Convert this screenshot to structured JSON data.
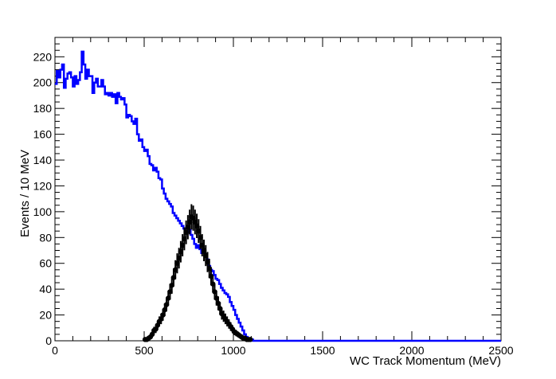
{
  "chart_data": {
    "type": "histogram",
    "xlabel": "WC Track Momentum (MeV)",
    "ylabel": "Events / 10 MeV",
    "xlim": [
      0,
      2500
    ],
    "ylim": [
      0,
      235
    ],
    "x_ticks": [
      0,
      500,
      1000,
      1500,
      2000,
      2500
    ],
    "y_ticks": [
      0,
      20,
      40,
      60,
      80,
      100,
      120,
      140,
      160,
      180,
      200,
      220
    ],
    "bin_width": 10,
    "series": [
      {
        "style": "step-histogram",
        "color": "#0000ff",
        "points": [
          [
            0,
            199
          ],
          [
            10,
            209
          ],
          [
            20,
            204
          ],
          [
            30,
            210
          ],
          [
            40,
            214
          ],
          [
            50,
            196
          ],
          [
            60,
            203
          ],
          [
            70,
            207
          ],
          [
            80,
            208
          ],
          [
            90,
            204
          ],
          [
            100,
            197
          ],
          [
            110,
            205
          ],
          [
            120,
            199
          ],
          [
            130,
            202
          ],
          [
            140,
            208
          ],
          [
            150,
            224
          ],
          [
            160,
            214
          ],
          [
            170,
            203
          ],
          [
            180,
            210
          ],
          [
            190,
            205
          ],
          [
            200,
            205
          ],
          [
            210,
            192
          ],
          [
            220,
            200
          ],
          [
            230,
            203
          ],
          [
            240,
            197
          ],
          [
            250,
            197
          ],
          [
            260,
            202
          ],
          [
            270,
            197
          ],
          [
            280,
            191
          ],
          [
            290,
            192
          ],
          [
            300,
            190
          ],
          [
            310,
            192
          ],
          [
            320,
            189
          ],
          [
            330,
            191
          ],
          [
            340,
            184
          ],
          [
            350,
            192
          ],
          [
            360,
            189
          ],
          [
            370,
            187
          ],
          [
            380,
            188
          ],
          [
            390,
            183
          ],
          [
            400,
            173
          ],
          [
            410,
            175
          ],
          [
            420,
            174
          ],
          [
            430,
            170
          ],
          [
            440,
            168
          ],
          [
            450,
            172
          ],
          [
            460,
            160
          ],
          [
            470,
            155
          ],
          [
            480,
            156
          ],
          [
            490,
            150
          ],
          [
            500,
            147
          ],
          [
            510,
            148
          ],
          [
            520,
            143
          ],
          [
            530,
            137
          ],
          [
            540,
            136
          ],
          [
            550,
            132
          ],
          [
            560,
            134
          ],
          [
            570,
            131
          ],
          [
            580,
            126
          ],
          [
            590,
            125
          ],
          [
            600,
            118
          ],
          [
            610,
            114
          ],
          [
            620,
            110
          ],
          [
            630,
            108
          ],
          [
            640,
            106
          ],
          [
            650,
            104
          ],
          [
            660,
            99
          ],
          [
            670,
            97
          ],
          [
            680,
            95
          ],
          [
            690,
            93
          ],
          [
            700,
            91
          ],
          [
            710,
            89
          ],
          [
            720,
            87
          ],
          [
            730,
            85
          ],
          [
            740,
            84
          ],
          [
            750,
            86
          ],
          [
            760,
            82
          ],
          [
            770,
            79
          ],
          [
            780,
            75
          ],
          [
            790,
            72
          ],
          [
            800,
            74
          ],
          [
            810,
            71
          ],
          [
            820,
            68
          ],
          [
            830,
            70
          ],
          [
            840,
            66
          ],
          [
            850,
            63
          ],
          [
            860,
            58
          ],
          [
            870,
            55
          ],
          [
            880,
            54
          ],
          [
            890,
            51
          ],
          [
            900,
            48
          ],
          [
            910,
            47
          ],
          [
            920,
            44
          ],
          [
            930,
            41
          ],
          [
            940,
            39
          ],
          [
            950,
            37
          ],
          [
            960,
            36
          ],
          [
            970,
            34
          ],
          [
            980,
            30
          ],
          [
            990,
            27
          ],
          [
            1000,
            24
          ],
          [
            1010,
            20
          ],
          [
            1020,
            17
          ],
          [
            1030,
            14
          ],
          [
            1040,
            11
          ],
          [
            1050,
            8
          ],
          [
            1060,
            5
          ],
          [
            1070,
            3
          ],
          [
            1080,
            2
          ],
          [
            1090,
            1
          ],
          [
            1100,
            1
          ],
          [
            1110,
            0
          ],
          [
            2500,
            0
          ]
        ]
      },
      {
        "style": "points-with-error-bars",
        "color": "#000000",
        "points": [
          [
            500,
            1
          ],
          [
            510,
            1
          ],
          [
            520,
            2
          ],
          [
            530,
            3
          ],
          [
            540,
            5
          ],
          [
            550,
            8
          ],
          [
            560,
            9
          ],
          [
            570,
            12
          ],
          [
            580,
            15
          ],
          [
            590,
            17
          ],
          [
            600,
            20
          ],
          [
            610,
            24
          ],
          [
            620,
            28
          ],
          [
            630,
            33
          ],
          [
            640,
            38
          ],
          [
            650,
            43
          ],
          [
            660,
            49
          ],
          [
            670,
            55
          ],
          [
            680,
            60
          ],
          [
            690,
            64
          ],
          [
            700,
            69
          ],
          [
            710,
            74
          ],
          [
            720,
            79
          ],
          [
            730,
            84
          ],
          [
            740,
            88
          ],
          [
            750,
            92
          ],
          [
            760,
            96
          ],
          [
            770,
            95
          ],
          [
            780,
            92
          ],
          [
            790,
            89
          ],
          [
            800,
            85
          ],
          [
            810,
            80
          ],
          [
            820,
            74
          ],
          [
            830,
            70
          ],
          [
            840,
            66
          ],
          [
            850,
            61
          ],
          [
            860,
            56
          ],
          [
            870,
            50
          ],
          [
            880,
            44
          ],
          [
            890,
            38
          ],
          [
            900,
            33
          ],
          [
            910,
            29
          ],
          [
            920,
            25
          ],
          [
            930,
            21
          ],
          [
            940,
            19
          ],
          [
            950,
            17
          ],
          [
            960,
            15
          ],
          [
            970,
            13
          ],
          [
            980,
            11
          ],
          [
            990,
            9
          ],
          [
            1000,
            7
          ],
          [
            1010,
            6
          ],
          [
            1020,
            5
          ],
          [
            1030,
            4
          ],
          [
            1040,
            3
          ],
          [
            1050,
            2
          ],
          [
            1060,
            2
          ],
          [
            1070,
            1
          ],
          [
            1080,
            1
          ],
          [
            1090,
            1
          ]
        ]
      }
    ]
  }
}
